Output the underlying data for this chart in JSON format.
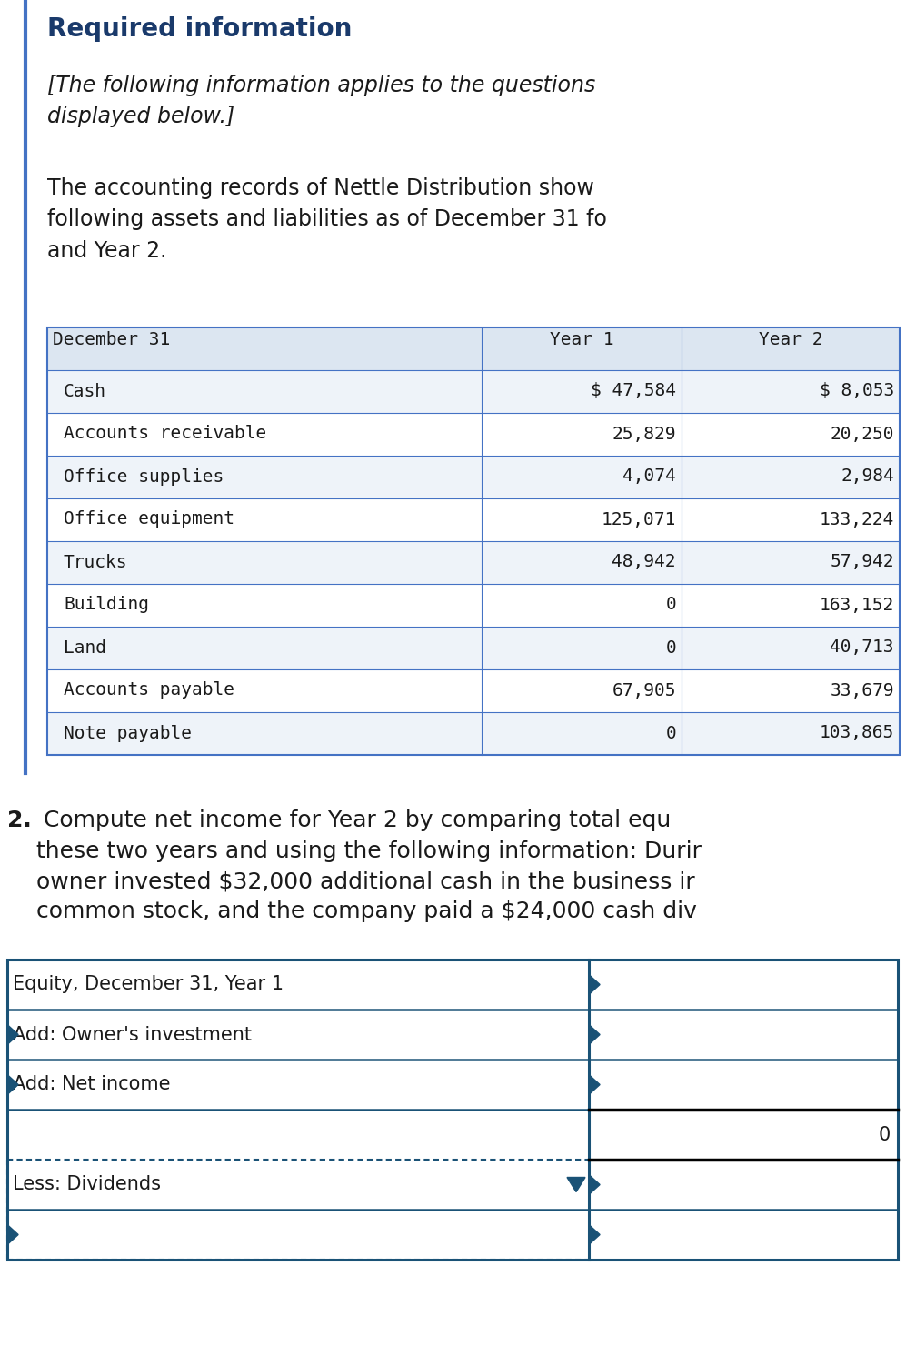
{
  "title": "Required information",
  "title_color": "#1a3a6b",
  "italic_text": "[The following information applies to the questions\ndisplayed below.]",
  "body_text": "The accounting records of Nettle Distribution show\nfollowing assets and liabilities as of December 31 fo\nand Year 2.",
  "table1_header": [
    "December 31",
    "Year 1",
    "Year 2"
  ],
  "table1_rows": [
    [
      "Cash",
      "$ 47,584",
      "$ 8,053"
    ],
    [
      "Accounts receivable",
      "25,829",
      "20,250"
    ],
    [
      "Office supplies",
      "4,074",
      "2,984"
    ],
    [
      "Office equipment",
      "125,071",
      "133,224"
    ],
    [
      "Trucks",
      "48,942",
      "57,942"
    ],
    [
      "Building",
      "0",
      "163,152"
    ],
    [
      "Land",
      "0",
      "40,713"
    ],
    [
      "Accounts payable",
      "67,905",
      "33,679"
    ],
    [
      "Note payable",
      "0",
      "103,865"
    ]
  ],
  "table1_header_bg": "#dce6f1",
  "table1_row_bg_odd": "#eef3f9",
  "table1_row_bg_even": "#ffffff",
  "table1_border_color": "#4472c4",
  "question_num": "2.",
  "question_text": " Compute net income for Year 2 by comparing total equ\nthese two years and using the following information: Durir\nowner invested $32,000 additional cash in the business ir\ncommon stock, and the company paid a $24,000 cash div",
  "table2_rows_labels": [
    "Equity, December 31, Year 1",
    "Add: Owner's investment",
    "Add: Net income",
    "",
    "Less: Dividends",
    ""
  ],
  "table2_rows_values": [
    "",
    "",
    "",
    "0",
    "",
    ""
  ],
  "table2_border_color": "#1a5276",
  "bg_color": "#ffffff",
  "text_color": "#1a1a1a",
  "mono_font": "DejaVu Sans Mono",
  "body_font": "DejaVu Sans",
  "title_fontsize": 20,
  "body_fontsize": 17,
  "table1_fontsize": 14,
  "table2_fontsize": 15,
  "q_fontsize": 18
}
